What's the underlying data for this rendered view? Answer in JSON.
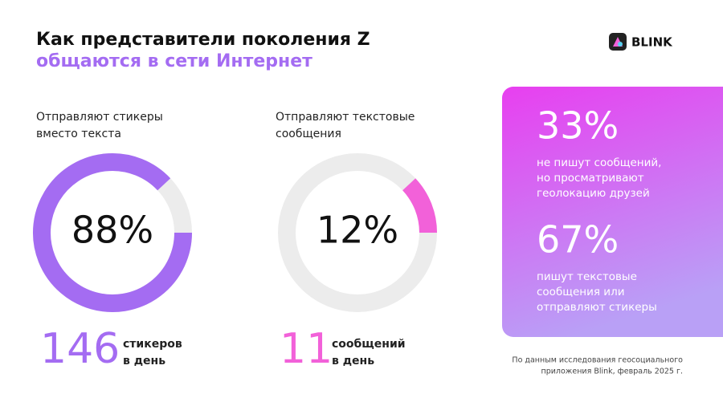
{
  "header": {
    "title": [
      "Как представители поколения Z",
      "общаются в сети Интернет"
    ],
    "brand": "BLINK"
  },
  "chart_data": [
    {
      "type": "donut",
      "title": [
        "Отправляют стикеры",
        "вместо текста"
      ],
      "values": [
        88
      ],
      "value_labels": [
        "88%"
      ],
      "ylim": [
        0,
        100
      ],
      "color": "#a46cf2",
      "track_color": "#ececec"
    },
    {
      "type": "donut",
      "title": [
        "Отправляют текстовые",
        "сообщения"
      ],
      "values": [
        12
      ],
      "value_labels": [
        "12%"
      ],
      "ylim": [
        0,
        100
      ],
      "color": "#f261d9",
      "track_color": "#ececec"
    }
  ],
  "stats": [
    {
      "number": "146",
      "text": [
        "стикеров",
        "в день"
      ],
      "color": "#a46cf2"
    },
    {
      "number": "11",
      "text": [
        "сообщений",
        "в день"
      ],
      "color": "#f261d9"
    }
  ],
  "panel": [
    {
      "number": "33%",
      "text": [
        "не пишут сообщений,",
        "но просматривают",
        "геолокацию друзей"
      ]
    },
    {
      "number": "67%",
      "text": [
        "пишут текстовые",
        "сообщения или",
        "отправляют стикеры"
      ]
    }
  ],
  "footnote": [
    "По данным исследования геосоциального",
    "приложения Blink, февраль 2025 г."
  ]
}
